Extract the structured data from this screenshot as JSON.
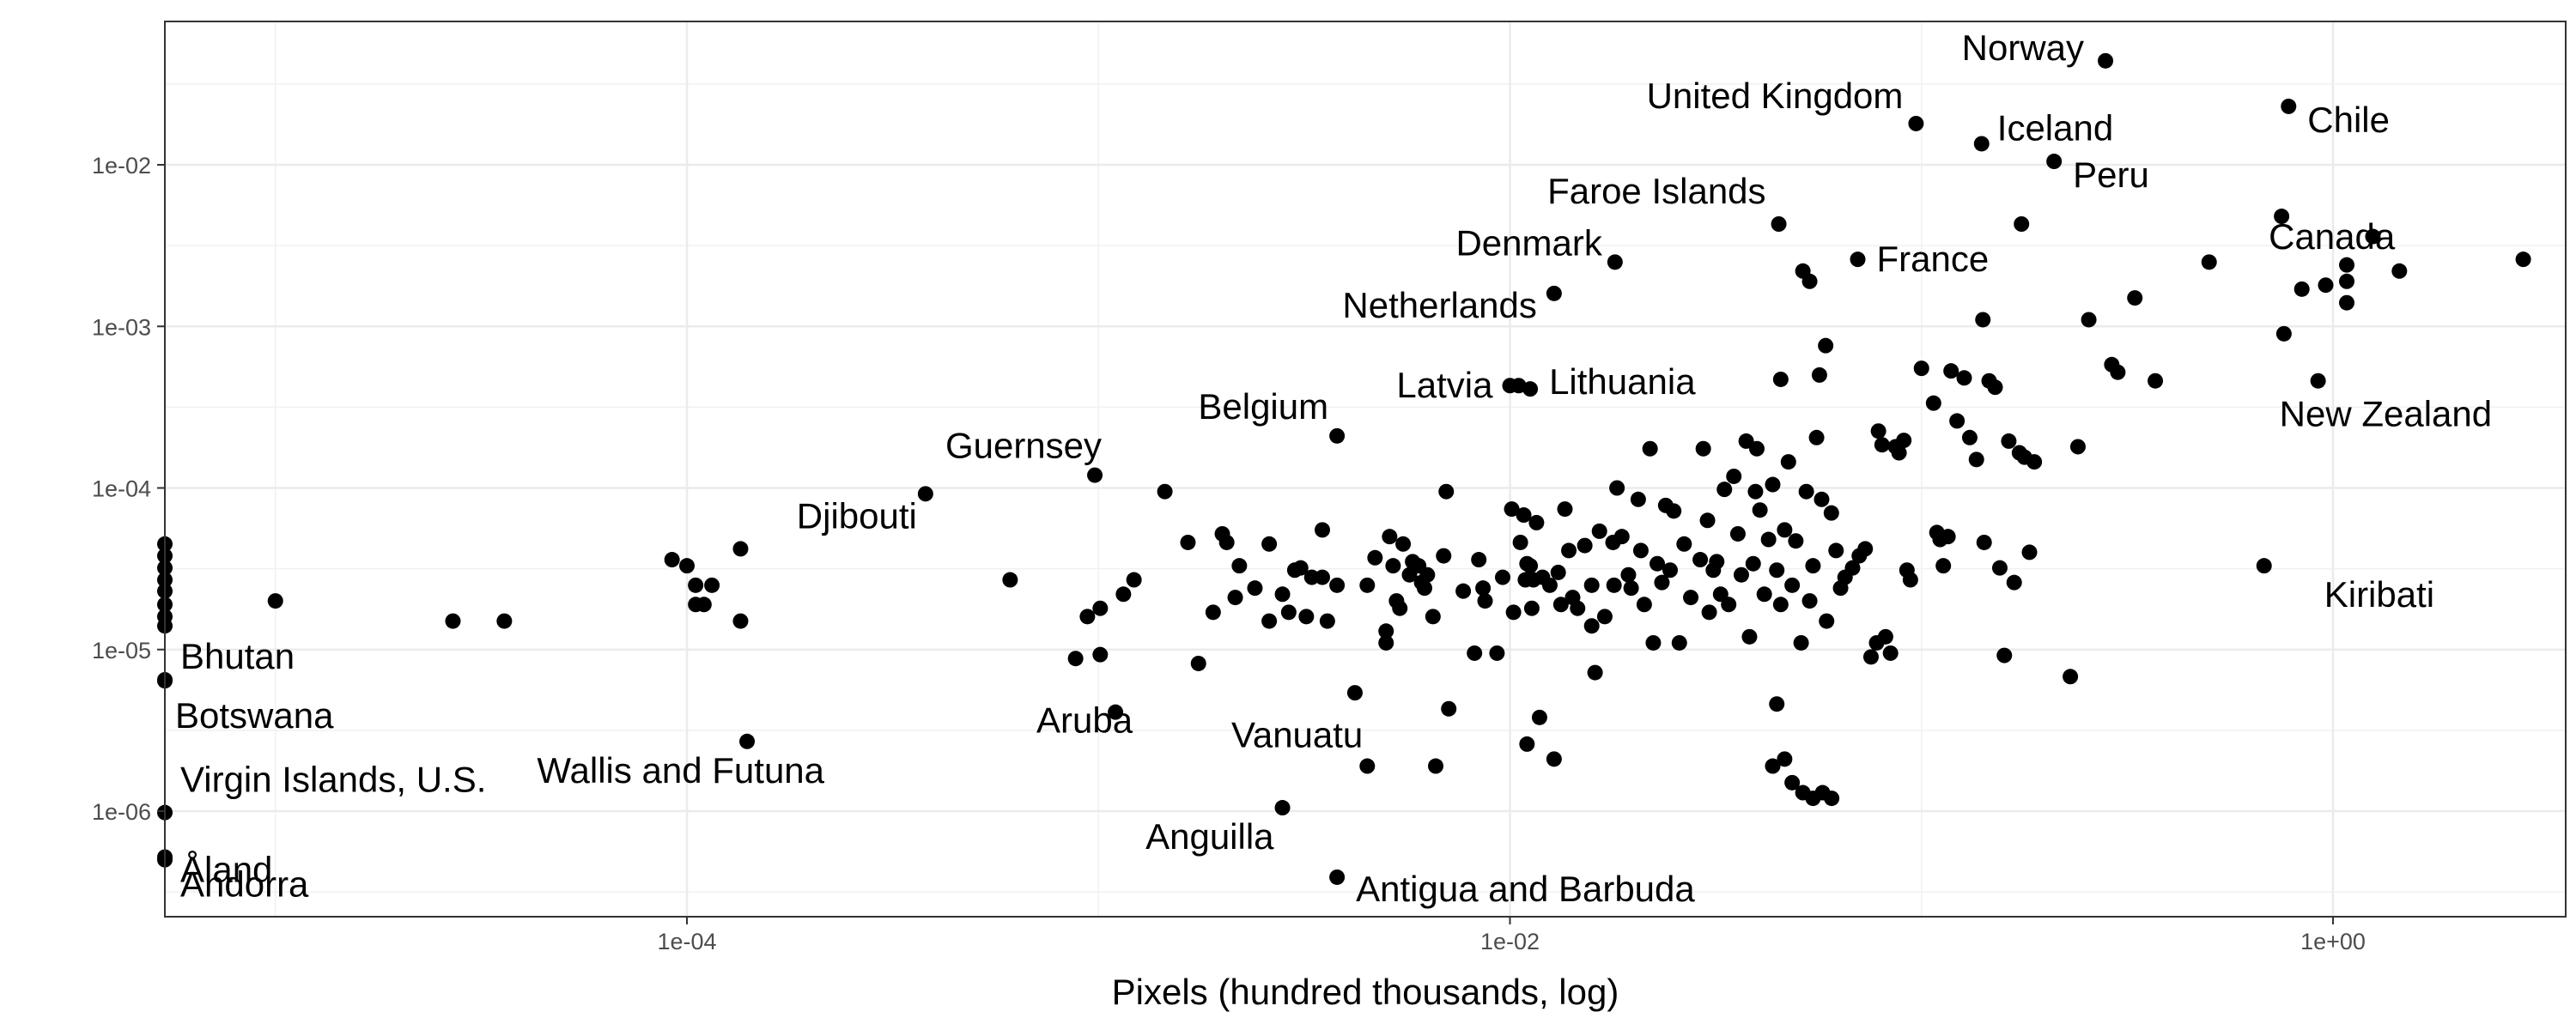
{
  "chart_data": {
    "type": "scatter",
    "xlabel": "Pixels (hundred thousands, log)",
    "ylabel": "",
    "x_scale": "log10",
    "y_scale": "log10",
    "xlim": [
      5e-06,
      10
    ],
    "ylim": [
      2.5e-07,
      0.1
    ],
    "x_ticks": [
      {
        "value": 0.0001,
        "label": "1e-04"
      },
      {
        "value": 0.01,
        "label": "1e-02"
      },
      {
        "value": 1,
        "label": "1e+00"
      }
    ],
    "y_ticks": [
      {
        "value": 1e-06,
        "label": "1e-06"
      },
      {
        "value": 1e-05,
        "label": "1e-05"
      },
      {
        "value": 0.0001,
        "label": "1e-04"
      },
      {
        "value": 0.001,
        "label": "1e-03"
      },
      {
        "value": 0.01,
        "label": "1e-02"
      }
    ],
    "grid": true,
    "point_color": "#000000",
    "labeled_points": [
      {
        "label": "Norway",
        "x": 0.28,
        "y": 0.044
      },
      {
        "label": "United Kingdom",
        "x": 0.097,
        "y": 0.018
      },
      {
        "label": "Iceland",
        "x": 0.14,
        "y": 0.0135
      },
      {
        "label": "Chile",
        "x": 0.78,
        "y": 0.023
      },
      {
        "label": "Peru",
        "x": 0.21,
        "y": 0.0105
      },
      {
        "label": "Faroe Islands",
        "x": 0.045,
        "y": 0.0043
      },
      {
        "label": "Canada",
        "x": 0.75,
        "y": 0.0048
      },
      {
        "label": "Denmark",
        "x": 0.018,
        "y": 0.0025
      },
      {
        "label": "France",
        "x": 0.07,
        "y": 0.0026
      },
      {
        "label": "Netherlands",
        "x": 0.0128,
        "y": 0.0016
      },
      {
        "label": "Latvia",
        "x": 0.01,
        "y": 0.00043
      },
      {
        "label": "Lithuania",
        "x": 0.0112,
        "y": 0.00041
      },
      {
        "label": "New Zealand",
        "x": 0.92,
        "y": 0.00046
      },
      {
        "label": "Belgium",
        "x": 0.0038,
        "y": 0.00021
      },
      {
        "label": "Guernsey",
        "x": 0.00098,
        "y": 0.00012
      },
      {
        "label": "Djibouti",
        "x": 0.00038,
        "y": 9.2e-05
      },
      {
        "label": "Kiribati",
        "x": 0.68,
        "y": 3.3e-05
      },
      {
        "label": "Bhutan",
        "x": 5e-06,
        "y": 6.5e-06
      },
      {
        "label": "Botswana",
        "x": 5e-06,
        "y": 6.4e-06
      },
      {
        "label": "Aruba",
        "x": 0.0011,
        "y": 4.1e-06
      },
      {
        "label": "Vanuatu",
        "x": 0.0045,
        "y": 1.9e-06
      },
      {
        "label": "Wallis and Futuna",
        "x": 0.00014,
        "y": 2.7e-06
      },
      {
        "label": "Virgin Islands, U.S.",
        "x": 5e-06,
        "y": 9.8e-07
      },
      {
        "label": "Åland",
        "x": 5e-06,
        "y": 5.2e-07
      },
      {
        "label": "Andorra",
        "x": 5e-06,
        "y": 5e-07
      },
      {
        "label": "Anguilla",
        "x": 0.0028,
        "y": 1.05e-06
      },
      {
        "label": "Antigua and Barbuda",
        "x": 0.0038,
        "y": 3.9e-07
      }
    ],
    "unlabeled_points": [
      [
        5e-06,
        4.5e-05
      ],
      [
        5e-06,
        3.8e-05
      ],
      [
        5e-06,
        3.2e-05
      ],
      [
        5e-06,
        2.7e-05
      ],
      [
        5e-06,
        2.3e-05
      ],
      [
        5e-06,
        1.9e-05
      ],
      [
        5e-06,
        1.6e-05
      ],
      [
        5e-06,
        1.4e-05
      ],
      [
        1e-05,
        2e-05
      ],
      [
        2.7e-05,
        1.5e-05
      ],
      [
        3.6e-05,
        1.5e-05
      ],
      [
        9.2e-05,
        3.6e-05
      ],
      [
        0.0001,
        3.3e-05
      ],
      [
        0.000105,
        2.5e-05
      ],
      [
        0.000105,
        1.9e-05
      ],
      [
        0.00011,
        1.9e-05
      ],
      [
        0.000115,
        2.5e-05
      ],
      [
        0.000135,
        4.2e-05
      ],
      [
        0.000135,
        1.5e-05
      ],
      [
        0.00061,
        2.7e-05
      ],
      [
        0.00088,
        8.8e-06
      ],
      [
        0.00094,
        1.6e-05
      ],
      [
        0.00101,
        1.8e-05
      ],
      [
        0.00101,
        9.3e-06
      ],
      [
        0.00115,
        2.2e-05
      ],
      [
        0.00122,
        2.7e-05
      ],
      [
        0.00145,
        9.5e-05
      ],
      [
        0.00165,
        4.6e-05
      ],
      [
        0.00175,
        8.2e-06
      ],
      [
        0.0019,
        1.7e-05
      ],
      [
        0.002,
        5.2e-05
      ],
      [
        0.00205,
        4.6e-05
      ],
      [
        0.00215,
        2.1e-05
      ],
      [
        0.0022,
        3.3e-05
      ],
      [
        0.0024,
        2.4e-05
      ],
      [
        0.0026,
        4.5e-05
      ],
      [
        0.0026,
        1.5e-05
      ],
      [
        0.0028,
        2.2e-05
      ],
      [
        0.0029,
        1.7e-05
      ],
      [
        0.003,
        3.1e-05
      ],
      [
        0.0031,
        3.2e-05
      ],
      [
        0.0032,
        1.6e-05
      ],
      [
        0.0033,
        2.8e-05
      ],
      [
        0.0035,
        5.5e-05
      ],
      [
        0.0035,
        2.8e-05
      ],
      [
        0.0036,
        1.5e-05
      ],
      [
        0.0038,
        2.5e-05
      ],
      [
        0.0042,
        5.4e-06
      ],
      [
        0.0045,
        2.5e-05
      ],
      [
        0.0047,
        3.7e-05
      ],
      [
        0.005,
        1.3e-05
      ],
      [
        0.005,
        1.1e-05
      ],
      [
        0.0051,
        5e-05
      ],
      [
        0.0052,
        3.3e-05
      ],
      [
        0.0053,
        2e-05
      ],
      [
        0.0054,
        1.8e-05
      ],
      [
        0.0055,
        4.5e-05
      ],
      [
        0.0057,
        2.9e-05
      ],
      [
        0.0058,
        3.5e-05
      ],
      [
        0.006,
        3.3e-05
      ],
      [
        0.0061,
        2.6e-05
      ],
      [
        0.0062,
        2.4e-05
      ],
      [
        0.0063,
        2.9e-05
      ],
      [
        0.0065,
        1.6e-05
      ],
      [
        0.0066,
        1.9e-06
      ],
      [
        0.0069,
        3.8e-05
      ],
      [
        0.007,
        9.5e-05
      ],
      [
        0.0071,
        4.3e-06
      ],
      [
        0.0077,
        2.3e-05
      ],
      [
        0.0082,
        9.5e-06
      ],
      [
        0.0084,
        3.6e-05
      ],
      [
        0.0086,
        2.4e-05
      ],
      [
        0.0087,
        2e-05
      ],
      [
        0.0093,
        9.5e-06
      ],
      [
        0.0096,
        2.8e-05
      ],
      [
        0.0101,
        7.4e-05
      ],
      [
        0.0102,
        1.7e-05
      ],
      [
        0.0106,
        4.6e-05
      ],
      [
        0.0108,
        6.8e-05
      ],
      [
        0.0109,
        2.7e-05
      ],
      [
        0.011,
        2.6e-06
      ],
      [
        0.011,
        3.4e-05
      ],
      [
        0.0112,
        3.3e-05
      ],
      [
        0.0113,
        1.8e-05
      ],
      [
        0.0114,
        2.7e-05
      ],
      [
        0.0116,
        6.1e-05
      ],
      [
        0.0118,
        3.8e-06
      ],
      [
        0.012,
        2.8e-05
      ],
      [
        0.0125,
        2.5e-05
      ],
      [
        0.0128,
        2.1e-06
      ],
      [
        0.0131,
        3e-05
      ],
      [
        0.0133,
        1.9e-05
      ],
      [
        0.0136,
        7.4e-05
      ],
      [
        0.0139,
        4.1e-05
      ],
      [
        0.0142,
        2.1e-05
      ],
      [
        0.0146,
        1.8e-05
      ],
      [
        0.0152,
        4.4e-05
      ],
      [
        0.0158,
        2.5e-05
      ],
      [
        0.0158,
        1.4e-05
      ],
      [
        0.0161,
        7.2e-06
      ],
      [
        0.0165,
        5.4e-05
      ],
      [
        0.017,
        1.6e-05
      ],
      [
        0.0178,
        4.6e-05
      ],
      [
        0.0179,
        2.5e-05
      ],
      [
        0.0182,
        0.0001
      ],
      [
        0.0187,
        5e-05
      ],
      [
        0.0194,
        2.9e-05
      ],
      [
        0.0197,
        2.4e-05
      ],
      [
        0.0205,
        8.5e-05
      ],
      [
        0.0208,
        4.1e-05
      ],
      [
        0.0212,
        1.9e-05
      ],
      [
        0.0219,
        0.000175
      ],
      [
        0.0223,
        1.1e-05
      ],
      [
        0.0228,
        3.4e-05
      ],
      [
        0.0234,
        2.6e-05
      ],
      [
        0.0239,
        7.8e-05
      ],
      [
        0.0245,
        3.1e-05
      ],
      [
        0.025,
        7.2e-05
      ],
      [
        0.0258,
        1.1e-05
      ],
      [
        0.0265,
        4.5e-05
      ],
      [
        0.0275,
        2.1e-05
      ],
      [
        0.029,
        3.6e-05
      ],
      [
        0.0295,
        0.000175
      ],
      [
        0.0302,
        6.3e-05
      ],
      [
        0.0305,
        1.7e-05
      ],
      [
        0.0312,
        3.1e-05
      ],
      [
        0.0318,
        3.5e-05
      ],
      [
        0.0325,
        2.2e-05
      ],
      [
        0.0332,
        9.8e-05
      ],
      [
        0.034,
        1.9e-05
      ],
      [
        0.035,
        0.000118
      ],
      [
        0.0358,
        5.2e-05
      ],
      [
        0.0365,
        2.9e-05
      ],
      [
        0.0375,
        0.000195
      ],
      [
        0.0382,
        1.2e-05
      ],
      [
        0.039,
        3.4e-05
      ],
      [
        0.0398,
        0.000175
      ],
      [
        0.0405,
        7.3e-05
      ],
      [
        0.0415,
        2.2e-05
      ],
      [
        0.0425,
        4.8e-05
      ],
      [
        0.0435,
        0.000105
      ],
      [
        0.0445,
        3.1e-05
      ],
      [
        0.0455,
        1.9e-05
      ],
      [
        0.0465,
        5.5e-05
      ],
      [
        0.0475,
        0.000145
      ],
      [
        0.0485,
        2.5e-05
      ],
      [
        0.0495,
        4.7e-05
      ],
      [
        0.051,
        1.1e-05
      ],
      [
        0.0525,
        9.5e-05
      ],
      [
        0.0535,
        2e-05
      ],
      [
        0.0545,
        3.3e-05
      ],
      [
        0.0556,
        0.000205
      ],
      [
        0.0572,
        8.5e-05
      ],
      [
        0.0588,
        1.5e-05
      ],
      [
        0.0604,
        7e-05
      ],
      [
        0.062,
        4.1e-05
      ],
      [
        0.0636,
        2.4e-05
      ],
      [
        0.0652,
        2.8e-05
      ],
      [
        0.068,
        3.2e-05
      ],
      [
        0.0706,
        3.8e-05
      ],
      [
        0.073,
        4.2e-05
      ],
      [
        0.0754,
        9e-06
      ],
      [
        0.0778,
        1.1e-05
      ],
      [
        0.0786,
        0.000225
      ],
      [
        0.0802,
        0.000185
      ],
      [
        0.0818,
        1.2e-05
      ],
      [
        0.0841,
        9.5e-06
      ],
      [
        0.0865,
        0.00018
      ],
      [
        0.0882,
        0.000165
      ],
      [
        0.0906,
        0.000197
      ],
      [
        0.0922,
        3.1e-05
      ],
      [
        0.094,
        2.7e-05
      ],
      [
        0.1,
        0.00055
      ],
      [
        0.107,
        0.000335
      ],
      [
        0.109,
        5.3e-05
      ],
      [
        0.111,
        4.8e-05
      ],
      [
        0.113,
        3.3e-05
      ],
      [
        0.116,
        5e-05
      ],
      [
        0.118,
        0.00053
      ],
      [
        0.122,
        0.00026
      ],
      [
        0.127,
        0.00048
      ],
      [
        0.131,
        0.000205
      ],
      [
        0.136,
        0.00015
      ],
      [
        0.142,
        4.6e-05
      ],
      [
        0.146,
        0.00046
      ],
      [
        0.151,
        0.00042
      ],
      [
        0.155,
        3.2e-05
      ],
      [
        0.159,
        9.2e-06
      ],
      [
        0.163,
        0.000195
      ],
      [
        0.168,
        2.6e-05
      ],
      [
        0.173,
        0.000165
      ],
      [
        0.178,
        0.000155
      ],
      [
        0.183,
        4e-05
      ],
      [
        0.188,
        0.000145
      ],
      [
        0.0105,
        0.00043
      ],
      [
        0.0445,
        4.6e-06
      ],
      [
        0.0435,
        1.9e-06
      ],
      [
        0.0465,
        2.1e-06
      ],
      [
        0.0485,
        1.5e-06
      ],
      [
        0.0515,
        1.3e-06
      ],
      [
        0.0545,
        1.2e-06
      ],
      [
        0.0575,
        1.3e-06
      ],
      [
        0.0605,
        1.2e-06
      ],
      [
        0.0395,
        9.5e-05
      ],
      [
        0.0455,
        0.00047
      ],
      [
        0.0515,
        0.0022
      ],
      [
        0.0535,
        0.0019
      ],
      [
        0.0565,
        0.0005
      ],
      [
        0.0585,
        0.00076
      ],
      [
        0.141,
        0.0011
      ],
      [
        0.175,
        0.0043
      ],
      [
        0.23,
        6.8e-06
      ],
      [
        0.24,
        0.00018
      ],
      [
        0.255,
        0.0011
      ],
      [
        0.29,
        0.00058
      ],
      [
        0.3,
        0.00052
      ],
      [
        0.33,
        0.0015
      ],
      [
        0.37,
        0.00046
      ],
      [
        0.5,
        0.0025
      ],
      [
        0.76,
        0.0009
      ],
      [
        0.84,
        0.0017
      ],
      [
        0.96,
        0.0018
      ],
      [
        1.08,
        0.0024
      ],
      [
        1.08,
        0.0019
      ],
      [
        1.08,
        0.0014
      ],
      [
        1.25,
        0.0036
      ],
      [
        1.45,
        0.0022
      ],
      [
        2.9,
        0.0026
      ]
    ]
  }
}
